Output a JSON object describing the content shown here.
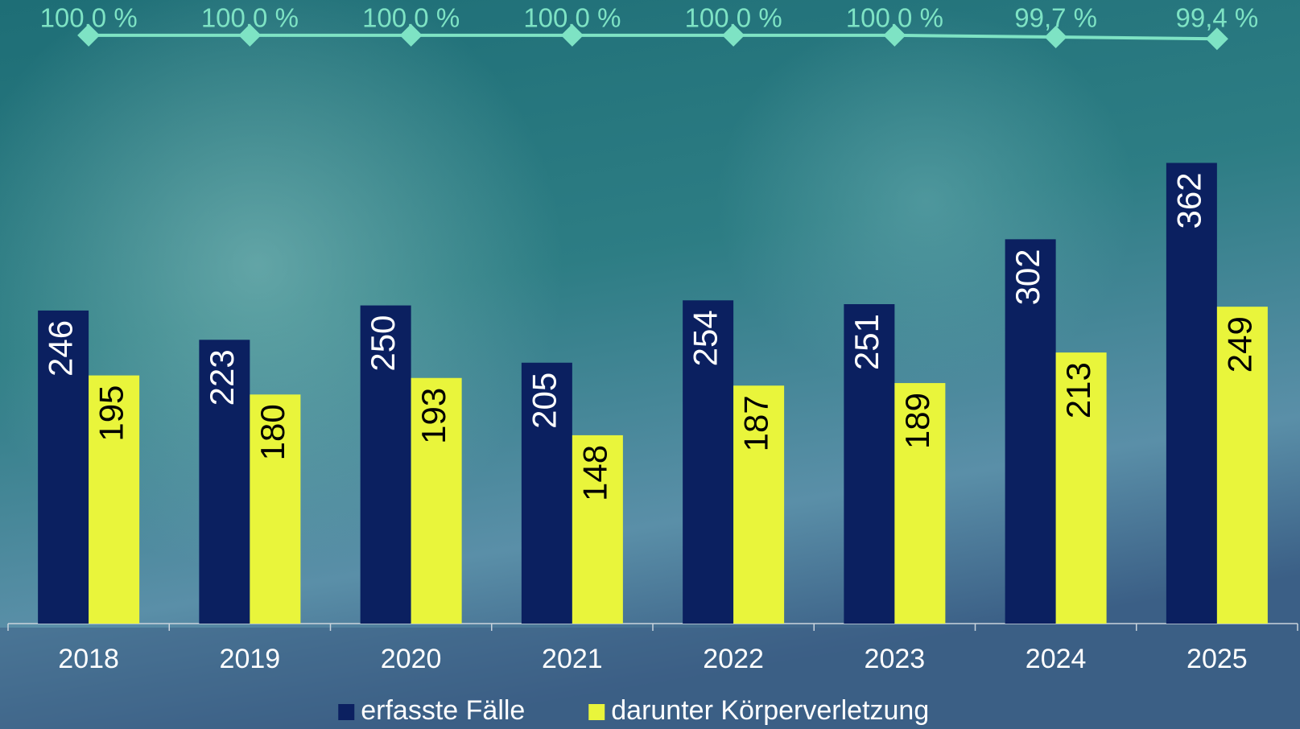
{
  "chart_data": {
    "type": "bar",
    "categories": [
      "2018",
      "2019",
      "2020",
      "2021",
      "2022",
      "2023",
      "2024",
      "2025"
    ],
    "series": [
      {
        "name": "erfasste Fälle",
        "color": "#0b2060",
        "values": [
          246,
          223,
          250,
          205,
          254,
          251,
          302,
          362
        ]
      },
      {
        "name": "darunter Körperverletzung",
        "color": "#e9f53b",
        "values": [
          195,
          180,
          193,
          148,
          187,
          189,
          213,
          249
        ]
      },
      {
        "type": "line",
        "axis": "y2",
        "color": "#7ee3c4",
        "values": [
          100,
          100,
          100,
          100,
          100,
          100,
          99.7,
          99.4
        ],
        "value_labels": [
          "100,0 %",
          "100,0 %",
          "100,0 %",
          "100,0 %",
          "100,0 %",
          "100,0 %",
          "99,7 %",
          "99,4 %"
        ]
      }
    ],
    "ylim": [
      0,
      490
    ],
    "y2lim": [
      0,
      106
    ],
    "legend": "bottom"
  }
}
